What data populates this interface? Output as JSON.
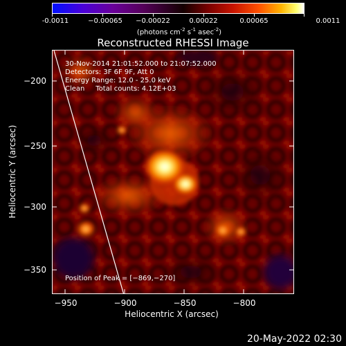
{
  "colorbar": {
    "labels": [
      "-0.0011",
      "−0.00065",
      "−0.00022",
      "0.00022",
      "0.00065",
      "0.0011"
    ],
    "units_main": "(photons cm",
    "units_exp1": "-2",
    "units_mid": " s",
    "units_exp2": "-1",
    "units_mid2": " asec",
    "units_exp3": "-2",
    "units_end": ")"
  },
  "title": "Reconstructed RHESSI Image",
  "annotations": {
    "time_range": "30-Nov-2014 21:01:52.000 to 21:07:52.000",
    "detectors": "Detectors: 3F 6F 9F, Att 0",
    "energy": "Energy Range: 12.0 - 25.0 keV",
    "clean": "Clean     Total counts: 4.12E+03",
    "peak": "Position of Peak = [−869,−270]"
  },
  "axes": {
    "xlabel": "Heliocentric X (arcsec)",
    "ylabel": "Heliocentric Y (arcsec)",
    "xticks": [
      "−950",
      "−900",
      "−850",
      "−800"
    ],
    "yticks": [
      "−200",
      "−250",
      "−300",
      "−350"
    ]
  },
  "timestamp": "20-May-2022 02:30"
}
